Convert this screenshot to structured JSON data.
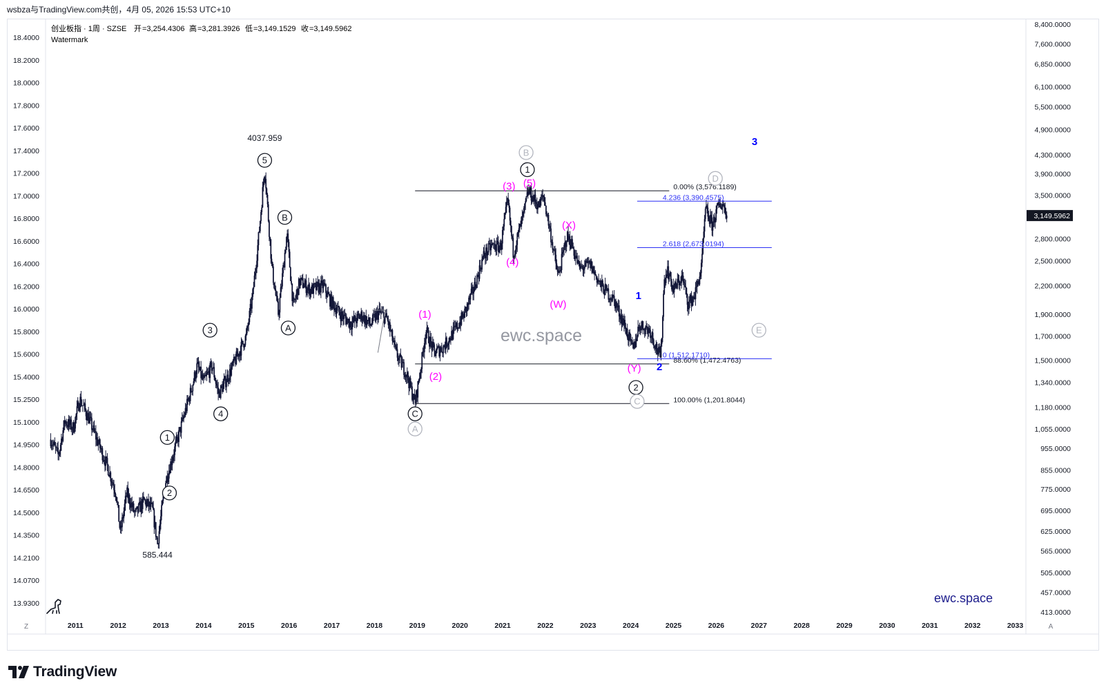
{
  "header": {
    "share_line": "wsbza与TradingView.com共创，4月 05, 2026 15:53 UTC+10"
  },
  "legend": {
    "symbol": "创业板指 · 1周 · SZSE",
    "open_label": "开",
    "open": "=3,254.4306",
    "high_label": "高",
    "high": "=3,281.3926",
    "low_label": "低",
    "low": "=3,149.1529",
    "close_label": "收",
    "close": "=3,149.5962",
    "watermark_text": "Watermark"
  },
  "colors": {
    "candle": "#131738",
    "wave_black": "#131722",
    "wave_magenta": "#ff00ff",
    "wave_blue": "#0000ff",
    "wave_gray": "#b2b5be",
    "fib_black": "#131722",
    "fib_blue": "#2a2ff5",
    "brand_blue": "#1c1c8c",
    "price_badge_bg": "#131722"
  },
  "branding": {
    "center_watermark": "ewc.space",
    "corner_watermark": "ewc.space",
    "footer_logo": "TradingView",
    "logo_icon": "tradingview-logo-icon",
    "dino_icon": "dinosaur-icon"
  },
  "axis_buttons": {
    "left": "Z",
    "right": "A"
  },
  "chart_data": {
    "type": "candlestick",
    "scale": "log",
    "grid": false,
    "x_range": [
      2010.3,
      2033.25
    ],
    "x_ticks": [
      "2011",
      "2012",
      "2013",
      "2014",
      "2015",
      "2016",
      "2017",
      "2018",
      "2019",
      "2020",
      "2021",
      "2022",
      "2023",
      "2024",
      "2025",
      "2026",
      "2027",
      "2028",
      "2029",
      "2030",
      "2031",
      "2032",
      "2033"
    ],
    "y_range": [
      413,
      8400
    ],
    "left_axis_ticks": [
      "18.4000",
      "18.2000",
      "18.0000",
      "17.8000",
      "17.6000",
      "17.4000",
      "17.2000",
      "17.0000",
      "16.8000",
      "16.6000",
      "16.4000",
      "16.2000",
      "16.0000",
      "15.8000",
      "15.6000",
      "15.4000",
      "15.2500",
      "15.1000",
      "14.9500",
      "14.8000",
      "14.6500",
      "14.5000",
      "14.3500",
      "14.2100",
      "14.0700",
      "13.9300"
    ],
    "right_axis_ticks": [
      "8,400.0000",
      "7,600.0000",
      "6,850.0000",
      "6,100.0000",
      "5,500.0000",
      "4,900.0000",
      "4,300.0000",
      "3,900.0000",
      "3,500.0000",
      "3,149.5962",
      "2,800.0000",
      "2,500.0000",
      "2,200.0000",
      "1,900.0000",
      "1,700.0000",
      "1,500.0000",
      "1,340.0000",
      "1,180.0000",
      "1,055.0000",
      "955.0000",
      "855.0000",
      "775.0000",
      "695.0000",
      "625.0000",
      "565.0000",
      "505.0000",
      "457.0000",
      "413.0000"
    ],
    "last_price_label": "3,149.5962",
    "last_price": 3149.5962,
    "price_path": [
      [
        2010.42,
        1000
      ],
      [
        2010.6,
        920
      ],
      [
        2010.75,
        1100
      ],
      [
        2010.95,
        1060
      ],
      [
        2011.1,
        1230
      ],
      [
        2011.3,
        1120
      ],
      [
        2011.5,
        1000
      ],
      [
        2011.75,
        870
      ],
      [
        2011.95,
        760
      ],
      [
        2012.05,
        620
      ],
      [
        2012.2,
        760
      ],
      [
        2012.4,
        680
      ],
      [
        2012.6,
        730
      ],
      [
        2012.8,
        700
      ],
      [
        2012.92,
        585.444
      ],
      [
        2013.1,
        800
      ],
      [
        2013.25,
        900
      ],
      [
        2013.45,
        1050
      ],
      [
        2013.7,
        1280
      ],
      [
        2013.85,
        1460
      ],
      [
        2014.0,
        1340
      ],
      [
        2014.2,
        1460
      ],
      [
        2014.35,
        1260
      ],
      [
        2014.6,
        1400
      ],
      [
        2014.85,
        1580
      ],
      [
        2015.0,
        1700
      ],
      [
        2015.15,
        2100
      ],
      [
        2015.3,
        2900
      ],
      [
        2015.43,
        4037.959
      ],
      [
        2015.6,
        2400
      ],
      [
        2015.75,
        1900
      ],
      [
        2015.95,
        2880
      ],
      [
        2016.1,
        1970
      ],
      [
        2016.25,
        2250
      ],
      [
        2016.5,
        2150
      ],
      [
        2016.8,
        2200
      ],
      [
        2016.95,
        2050
      ],
      [
        2017.2,
        1900
      ],
      [
        2017.45,
        1810
      ],
      [
        2017.7,
        1890
      ],
      [
        2017.9,
        1800
      ],
      [
        2018.1,
        1920
      ],
      [
        2018.3,
        1850
      ],
      [
        2018.5,
        1560
      ],
      [
        2018.75,
        1400
      ],
      [
        2018.95,
        1201.8044
      ],
      [
        2019.1,
        1480
      ],
      [
        2019.2,
        1750
      ],
      [
        2019.4,
        1560
      ],
      [
        2019.6,
        1600
      ],
      [
        2019.9,
        1760
      ],
      [
        2020.1,
        1900
      ],
      [
        2020.35,
        2200
      ],
      [
        2020.55,
        2560
      ],
      [
        2020.75,
        2700
      ],
      [
        2020.95,
        2680
      ],
      [
        2021.12,
        3400
      ],
      [
        2021.25,
        2600
      ],
      [
        2021.5,
        3200
      ],
      [
        2021.6,
        3576.1189
      ],
      [
        2021.85,
        3300
      ],
      [
        2021.95,
        3500
      ],
      [
        2022.1,
        2950
      ],
      [
        2022.3,
        2300
      ],
      [
        2022.5,
        2830
      ],
      [
        2022.6,
        2750
      ],
      [
        2022.8,
        2400
      ],
      [
        2023.05,
        2450
      ],
      [
        2023.3,
        2200
      ],
      [
        2023.6,
        2050
      ],
      [
        2023.85,
        1800
      ],
      [
        2024.05,
        1580
      ],
      [
        2024.2,
        1800
      ],
      [
        2024.45,
        1750
      ],
      [
        2024.6,
        1600
      ],
      [
        2024.7,
        1512.171
      ],
      [
        2024.78,
        2250
      ],
      [
        2024.85,
        2400
      ],
      [
        2025.0,
        2150
      ],
      [
        2025.2,
        2300
      ],
      [
        2025.35,
        2000
      ],
      [
        2025.5,
        2100
      ],
      [
        2025.65,
        2400
      ],
      [
        2025.75,
        3250
      ],
      [
        2025.9,
        3000
      ],
      [
        2026.05,
        3300
      ],
      [
        2026.15,
        3350
      ],
      [
        2026.26,
        3149.5962
      ]
    ],
    "price_labels": [
      {
        "text": "4037.959",
        "x": 2015.43,
        "y": 4037.959,
        "pos": "above"
      },
      {
        "text": "585.444",
        "x": 2012.92,
        "y": 585.444,
        "pos": "below"
      }
    ],
    "wave_labels": [
      {
        "text": "1",
        "x": 2013.15,
        "y": 1010,
        "style": "circle",
        "color": "wave_black"
      },
      {
        "text": "2",
        "x": 2013.2,
        "y": 760,
        "style": "circle",
        "color": "wave_black"
      },
      {
        "text": "3",
        "x": 2014.15,
        "y": 1750,
        "style": "circle",
        "color": "wave_black"
      },
      {
        "text": "4",
        "x": 2014.4,
        "y": 1140,
        "style": "circle",
        "color": "wave_black"
      },
      {
        "text": "5",
        "x": 2015.43,
        "y": 4180,
        "style": "circle",
        "color": "wave_black"
      },
      {
        "text": "A",
        "x": 2015.98,
        "y": 1770,
        "style": "circle",
        "color": "wave_black"
      },
      {
        "text": "B",
        "x": 2015.9,
        "y": 3120,
        "style": "circle",
        "color": "wave_black"
      },
      {
        "text": "C",
        "x": 2018.95,
        "y": 1140,
        "style": "circle",
        "color": "wave_black"
      },
      {
        "text": "A",
        "x": 2018.95,
        "y": 1055,
        "style": "circle",
        "color": "wave_gray"
      },
      {
        "text": "1",
        "x": 2021.58,
        "y": 3985,
        "style": "circle",
        "color": "wave_black"
      },
      {
        "text": "B",
        "x": 2021.55,
        "y": 4350,
        "style": "circle",
        "color": "wave_gray"
      },
      {
        "text": "2",
        "x": 2024.12,
        "y": 1305,
        "style": "circle",
        "color": "wave_black"
      },
      {
        "text": "C",
        "x": 2024.15,
        "y": 1215,
        "style": "circle",
        "color": "wave_gray"
      },
      {
        "text": "D",
        "x": 2025.98,
        "y": 3810,
        "style": "circle",
        "color": "wave_gray"
      },
      {
        "text": "E",
        "x": 2027.0,
        "y": 1750,
        "style": "circle",
        "color": "wave_gray"
      },
      {
        "text": "(1)",
        "x": 2019.18,
        "y": 1900,
        "style": "plain",
        "color": "wave_magenta"
      },
      {
        "text": "(2)",
        "x": 2019.43,
        "y": 1380,
        "style": "plain",
        "color": "wave_magenta"
      },
      {
        "text": "(3)",
        "x": 2021.15,
        "y": 3660,
        "style": "plain",
        "color": "wave_magenta"
      },
      {
        "text": "(4)",
        "x": 2021.23,
        "y": 2480,
        "style": "plain",
        "color": "wave_magenta"
      },
      {
        "text": "(5)",
        "x": 2021.63,
        "y": 3720,
        "style": "plain",
        "color": "wave_magenta"
      },
      {
        "text": "(W)",
        "x": 2022.3,
        "y": 2000,
        "style": "plain",
        "color": "wave_magenta"
      },
      {
        "text": "(X)",
        "x": 2022.55,
        "y": 3000,
        "style": "plain",
        "color": "wave_magenta"
      },
      {
        "text": "(Y)",
        "x": 2024.08,
        "y": 1440,
        "style": "plain",
        "color": "wave_magenta"
      },
      {
        "text": "1",
        "x": 2024.18,
        "y": 2090,
        "style": "plain",
        "color": "wave_blue"
      },
      {
        "text": "2",
        "x": 2024.67,
        "y": 1450,
        "style": "plain",
        "color": "wave_blue"
      },
      {
        "text": "3",
        "x": 2026.9,
        "y": 4600,
        "style": "plain",
        "color": "wave_blue"
      }
    ],
    "fib_lines": [
      {
        "label": "0.00% (3,576.1189)",
        "y": 3576.1189,
        "x0": 2018.95,
        "x1": 2024.9,
        "color": "fib_black"
      },
      {
        "label": "88.60% (1,472.4763)",
        "y": 1472.4763,
        "x0": 2018.95,
        "x1": 2024.9,
        "color": "fib_black"
      },
      {
        "label": "100.00% (1,201.8044)",
        "y": 1201.8044,
        "x0": 2018.95,
        "x1": 2024.9,
        "color": "fib_black"
      },
      {
        "label": "4.236 (3,390.4575)",
        "y": 3390.4575,
        "x0": 2024.15,
        "x1": 2027.3,
        "color": "fib_blue"
      },
      {
        "label": "2.618 (2,673.0194)",
        "y": 2673.0194,
        "x0": 2024.15,
        "x1": 2027.3,
        "color": "fib_blue"
      },
      {
        "label": "0 (1,512.1710)",
        "y": 1512.171,
        "x0": 2024.15,
        "x1": 2027.3,
        "color": "fib_blue"
      }
    ],
    "pattern_lines": [
      {
        "from": [
          2017.95,
          1940
        ],
        "to": [
          2018.25,
          1940
        ]
      },
      {
        "from": [
          2018.25,
          1940
        ],
        "to": [
          2018.08,
          1560
        ]
      }
    ]
  }
}
